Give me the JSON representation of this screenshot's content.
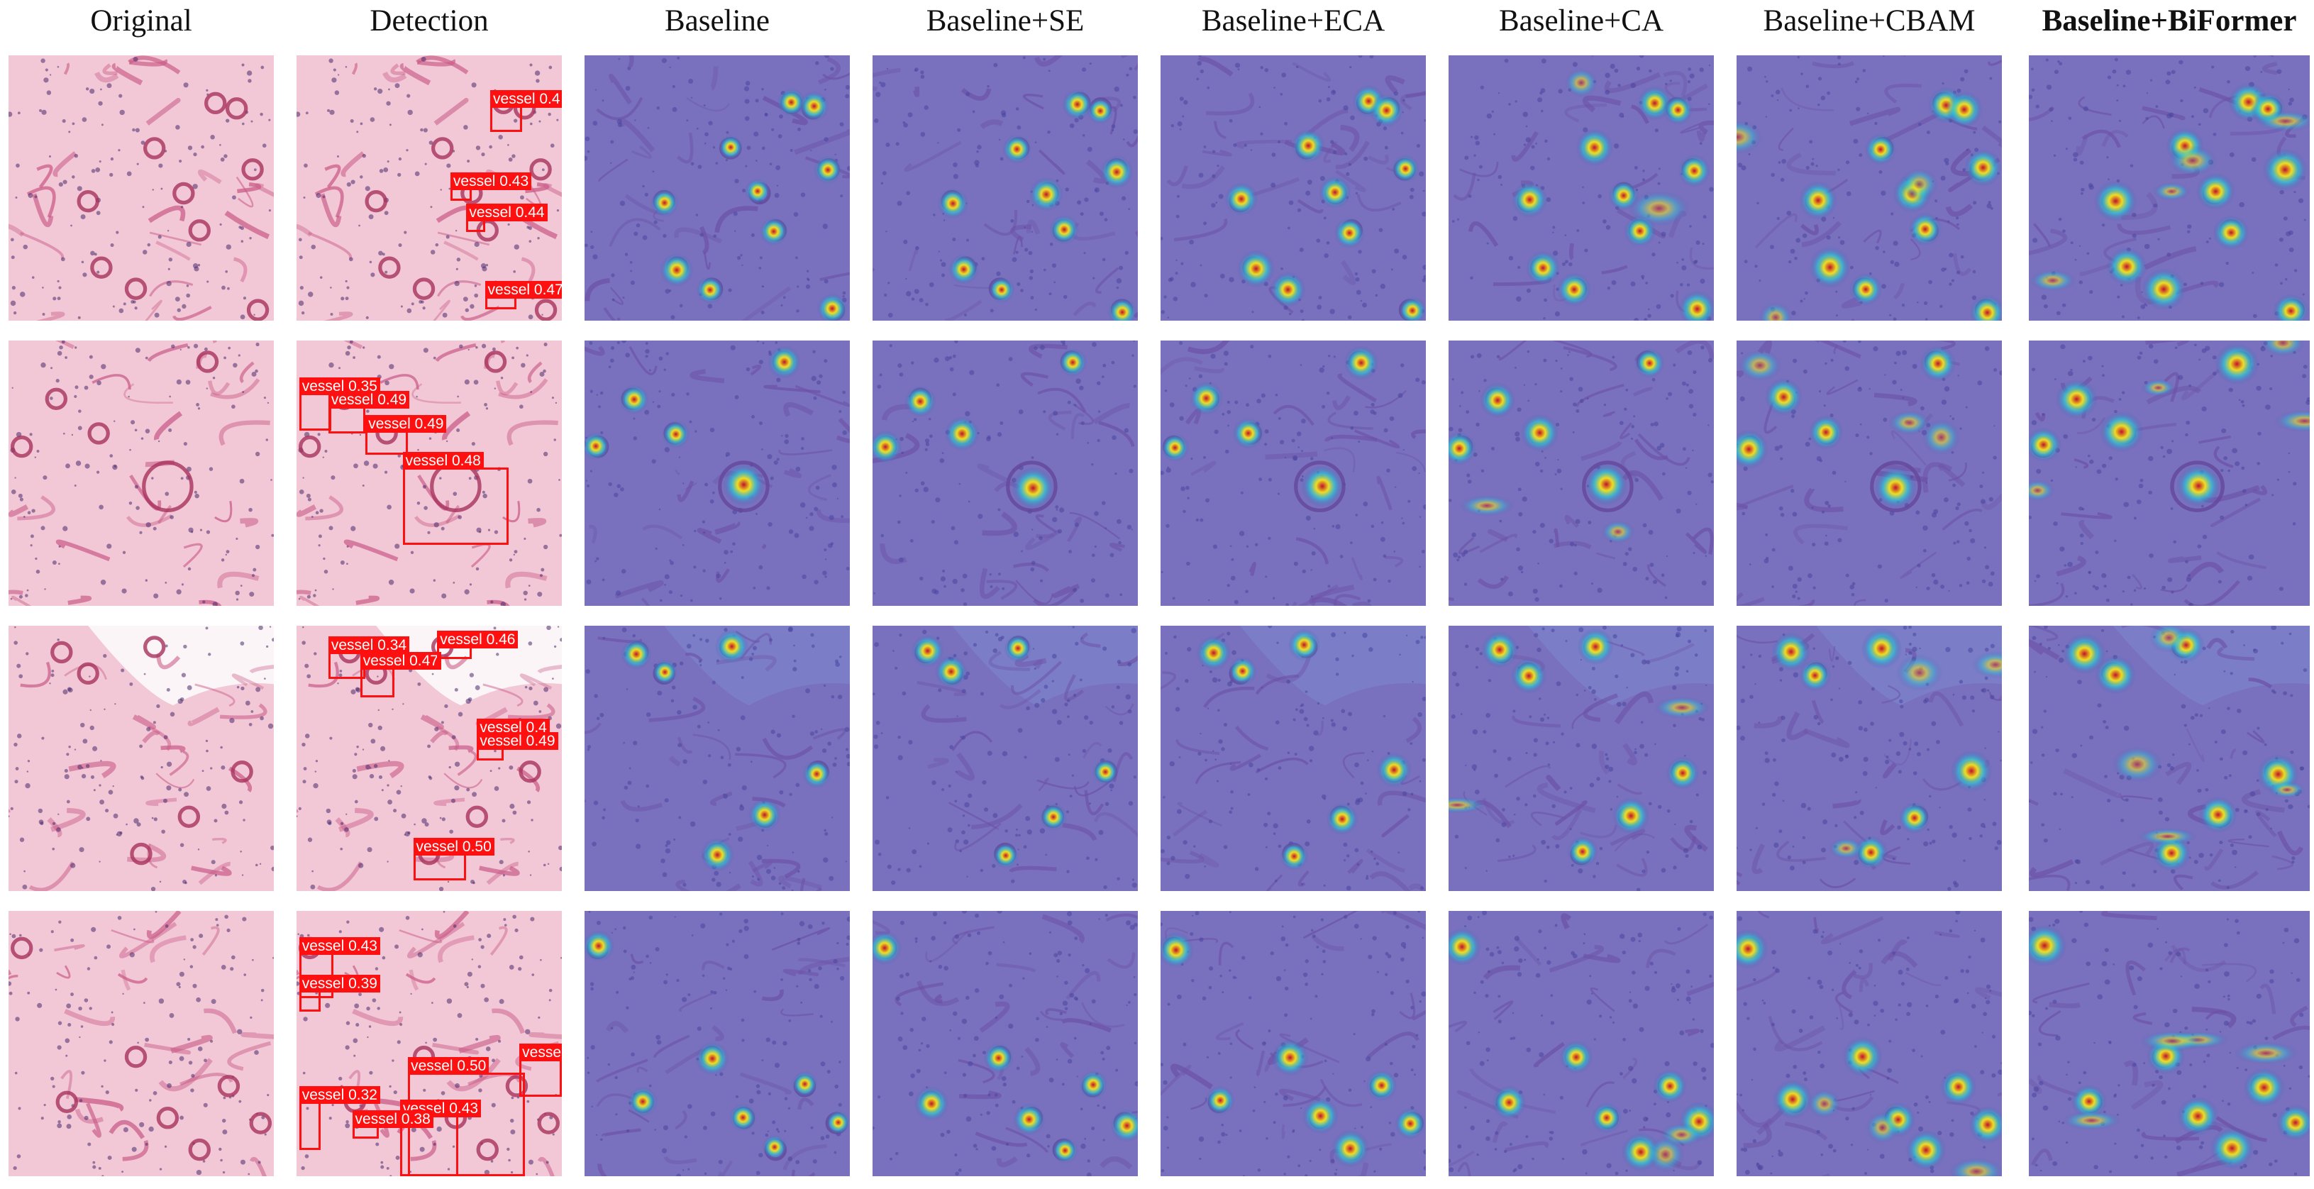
{
  "figure": {
    "columns": [
      {
        "key": "original",
        "label": "Original",
        "bold": false
      },
      {
        "key": "detection",
        "label": "Detection",
        "bold": false
      },
      {
        "key": "baseline",
        "label": "Baseline",
        "bold": false
      },
      {
        "key": "se",
        "label": "Baseline+SE",
        "bold": false
      },
      {
        "key": "eca",
        "label": "Baseline+ECA",
        "bold": false
      },
      {
        "key": "ca",
        "label": "Baseline+CA",
        "bold": false
      },
      {
        "key": "cbam",
        "label": "Baseline+CBAM",
        "bold": false
      },
      {
        "key": "biformer",
        "label": "Baseline+BiFormer",
        "bold": true
      }
    ],
    "rows": [
      {
        "name": "row-1",
        "detections": [
          {
            "label": "vessel 0.4",
            "score": 0.4
          },
          {
            "label": "vessel 0.43",
            "score": 0.43
          },
          {
            "label": "vessel 0.44",
            "score": 0.44
          },
          {
            "label": "vessel 0.47",
            "score": 0.47
          }
        ]
      },
      {
        "name": "row-2",
        "detections": [
          {
            "label": "vessel 0.35",
            "score": 0.35
          },
          {
            "label": "vessel 0.49",
            "score": 0.49
          },
          {
            "label": "vessel 0.49",
            "score": 0.49
          },
          {
            "label": "vessel 0.48",
            "score": 0.48
          }
        ]
      },
      {
        "name": "row-3",
        "detections": [
          {
            "label": "vessel 0.34",
            "score": 0.34
          },
          {
            "label": "vessel 0.47",
            "score": 0.47
          },
          {
            "label": "vessel 0.46",
            "score": 0.46
          },
          {
            "label": "vessel 0.4",
            "score": 0.4
          },
          {
            "label": "vessel 0.49",
            "score": 0.49
          },
          {
            "label": "vessel 0.50",
            "score": 0.5
          }
        ]
      },
      {
        "name": "row-4",
        "detections": [
          {
            "label": "vessel 0.43",
            "score": 0.43
          },
          {
            "label": "vessel 0.39",
            "score": 0.39
          },
          {
            "label": "vessel 0.50",
            "score": 0.5
          },
          {
            "label": "vessel",
            "score": null
          },
          {
            "label": "vessel 0.32",
            "score": 0.32
          },
          {
            "label": "vessel 0.43",
            "score": 0.43
          },
          {
            "label": "vessel 0.38",
            "score": 0.38
          }
        ]
      }
    ],
    "colors": {
      "tissue_pink": "#f2c8d6",
      "tissue_deep": "#c95a86",
      "nuclei": "#4a2a6e",
      "heatmap_base": "#4a4fb4",
      "detection_red": "#ff1010"
    }
  }
}
